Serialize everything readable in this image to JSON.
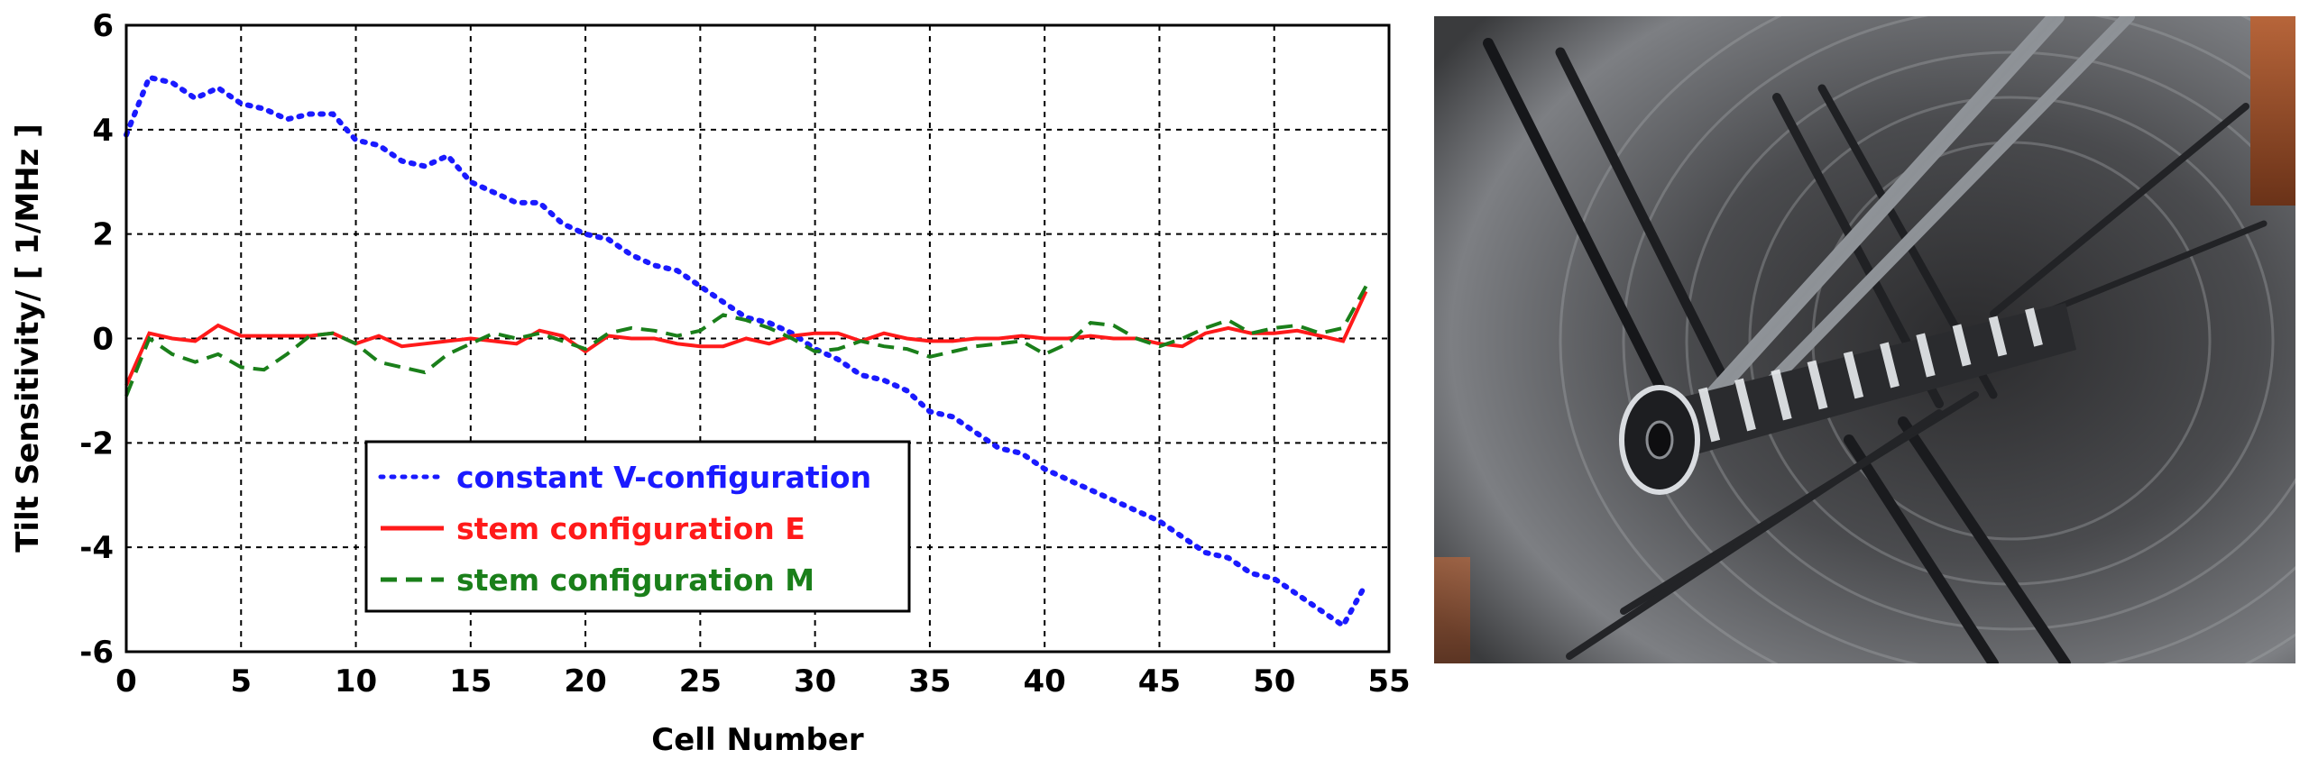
{
  "chart_data": {
    "type": "line",
    "xlabel": "Cell Number",
    "ylabel": "Tilt Sensitivity/ [ 1/MHz ]",
    "xlim": [
      0,
      55
    ],
    "ylim": [
      -6,
      6
    ],
    "xticks": [
      0,
      5,
      10,
      15,
      20,
      25,
      30,
      35,
      40,
      45,
      50,
      55
    ],
    "yticks": [
      6,
      4,
      2,
      0,
      -2,
      -4,
      -6
    ],
    "grid": true,
    "legend_position": "lower-left",
    "series": [
      {
        "name": "constant V-configuration",
        "color": "#1a1aff",
        "style": "dotted",
        "x": [
          0,
          1,
          2,
          3,
          4,
          5,
          6,
          7,
          8,
          9,
          10,
          11,
          12,
          13,
          14,
          15,
          16,
          17,
          18,
          19,
          20,
          21,
          22,
          23,
          24,
          25,
          26,
          27,
          28,
          29,
          30,
          31,
          32,
          33,
          34,
          35,
          36,
          37,
          38,
          39,
          40,
          41,
          42,
          43,
          44,
          45,
          46,
          47,
          48,
          49,
          50,
          51,
          52,
          53,
          54
        ],
        "y": [
          3.9,
          5.0,
          4.9,
          4.6,
          4.8,
          4.5,
          4.4,
          4.2,
          4.3,
          4.3,
          3.8,
          3.7,
          3.4,
          3.3,
          3.5,
          3.0,
          2.8,
          2.6,
          2.6,
          2.2,
          2.0,
          1.9,
          1.6,
          1.4,
          1.3,
          1.0,
          0.7,
          0.4,
          0.3,
          0.1,
          -0.2,
          -0.4,
          -0.7,
          -0.8,
          -1.0,
          -1.4,
          -1.5,
          -1.8,
          -2.1,
          -2.2,
          -2.5,
          -2.7,
          -2.9,
          -3.1,
          -3.3,
          -3.5,
          -3.8,
          -4.1,
          -4.2,
          -4.5,
          -4.6,
          -4.9,
          -5.2,
          -5.5,
          -4.7
        ]
      },
      {
        "name": "stem configuration E",
        "color": "#ff1a1a",
        "style": "solid",
        "x": [
          0,
          1,
          2,
          3,
          4,
          5,
          6,
          7,
          8,
          9,
          10,
          11,
          12,
          13,
          14,
          15,
          16,
          17,
          18,
          19,
          20,
          21,
          22,
          23,
          24,
          25,
          26,
          27,
          28,
          29,
          30,
          31,
          32,
          33,
          34,
          35,
          36,
          37,
          38,
          39,
          40,
          41,
          42,
          43,
          44,
          45,
          46,
          47,
          48,
          49,
          50,
          51,
          52,
          53,
          54
        ],
        "y": [
          -0.9,
          0.1,
          0.0,
          -0.05,
          0.25,
          0.05,
          0.05,
          0.05,
          0.05,
          0.1,
          -0.1,
          0.05,
          -0.15,
          -0.1,
          -0.05,
          0.0,
          -0.05,
          -0.1,
          0.15,
          0.05,
          -0.25,
          0.05,
          0.0,
          0.0,
          -0.1,
          -0.15,
          -0.15,
          0.0,
          -0.1,
          0.05,
          0.1,
          0.1,
          -0.05,
          0.1,
          0.0,
          -0.05,
          -0.05,
          0.0,
          0.0,
          0.05,
          0.0,
          0.0,
          0.05,
          0.0,
          0.0,
          -0.1,
          -0.15,
          0.1,
          0.2,
          0.1,
          0.1,
          0.15,
          0.05,
          -0.05,
          0.9
        ]
      },
      {
        "name": "stem configuration M",
        "color": "#1a7f1a",
        "style": "dashed",
        "x": [
          0,
          1,
          2,
          3,
          4,
          5,
          6,
          7,
          8,
          9,
          10,
          11,
          12,
          13,
          14,
          15,
          16,
          17,
          18,
          19,
          20,
          21,
          22,
          23,
          24,
          25,
          26,
          27,
          28,
          29,
          30,
          31,
          32,
          33,
          34,
          35,
          36,
          37,
          38,
          39,
          40,
          41,
          42,
          43,
          44,
          45,
          46,
          47,
          48,
          49,
          50,
          51,
          52,
          53,
          54
        ],
        "y": [
          -1.1,
          0.0,
          -0.3,
          -0.45,
          -0.3,
          -0.55,
          -0.6,
          -0.3,
          0.05,
          0.1,
          -0.1,
          -0.45,
          -0.55,
          -0.65,
          -0.3,
          -0.1,
          0.1,
          0.0,
          0.1,
          -0.05,
          -0.2,
          0.1,
          0.2,
          0.15,
          0.05,
          0.15,
          0.45,
          0.35,
          0.2,
          0.0,
          -0.25,
          -0.2,
          -0.05,
          -0.15,
          -0.2,
          -0.35,
          -0.25,
          -0.15,
          -0.1,
          -0.05,
          -0.3,
          -0.1,
          0.3,
          0.25,
          0.0,
          -0.15,
          0.0,
          0.2,
          0.35,
          0.1,
          0.2,
          0.25,
          0.1,
          0.2,
          1.0
        ]
      }
    ]
  },
  "photo": {
    "icon": "rfq-cavity-photo"
  }
}
